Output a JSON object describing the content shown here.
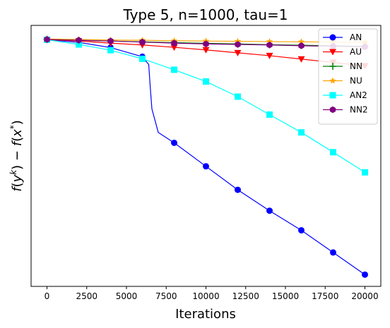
{
  "chart_data": {
    "type": "line",
    "title": "Type 5, n=1000, tau=1",
    "xlabel": "Iterations",
    "ylabel": "f(y^k) − f(x*)",
    "xlim": [
      -1000,
      21000
    ],
    "ylim": [
      0,
      1
    ],
    "xticks": [
      0,
      2500,
      5000,
      7500,
      10000,
      12500,
      15000,
      17500,
      20000
    ],
    "yticks": [],
    "grid": false,
    "legend_position": "top-right",
    "note": "y-axis has no tick labels; y values are normalized 0 (bottom) to 1 (top)",
    "series": [
      {
        "name": "AN",
        "color": "#0000ff",
        "marker": "circle",
        "x": [
          0,
          2000,
          4000,
          6000,
          6400,
          6500,
          6600,
          7000,
          8000,
          10000,
          12000,
          14000,
          16000,
          18000,
          20000
        ],
        "y": [
          0.945,
          0.935,
          0.915,
          0.88,
          0.85,
          0.76,
          0.68,
          0.59,
          0.55,
          0.46,
          0.37,
          0.29,
          0.215,
          0.13,
          0.045
        ]
      },
      {
        "name": "AU",
        "color": "#ff0000",
        "marker": "triangle-down",
        "x": [
          0,
          2000,
          4000,
          6000,
          8000,
          10000,
          12000,
          14000,
          16000,
          18000,
          20000
        ],
        "y": [
          0.945,
          0.94,
          0.932,
          0.925,
          0.916,
          0.906,
          0.895,
          0.884,
          0.871,
          0.858,
          0.845
        ]
      },
      {
        "name": "NN",
        "color": "#008000",
        "marker": "plus",
        "x": [
          0,
          2000,
          4000,
          6000,
          8000,
          10000,
          12000,
          14000,
          16000,
          18000,
          20000
        ],
        "y": [
          0.947,
          0.943,
          0.94,
          0.937,
          0.934,
          0.931,
          0.929,
          0.926,
          0.924,
          0.922,
          0.92
        ]
      },
      {
        "name": "NU",
        "color": "#ffa500",
        "marker": "star",
        "x": [
          0,
          2000,
          4000,
          6000,
          8000,
          10000,
          12000,
          14000,
          16000,
          18000,
          20000
        ],
        "y": [
          0.948,
          0.946,
          0.944,
          0.943,
          0.941,
          0.94,
          0.939,
          0.938,
          0.937,
          0.936,
          0.935
        ]
      },
      {
        "name": "AN2",
        "color": "#00ffff",
        "marker": "square",
        "x": [
          0,
          2000,
          4000,
          6000,
          8000,
          10000,
          12000,
          14000,
          16000,
          18000,
          20000
        ],
        "y": [
          0.945,
          0.927,
          0.905,
          0.872,
          0.83,
          0.785,
          0.727,
          0.658,
          0.59,
          0.514,
          0.437
        ]
      },
      {
        "name": "NN2",
        "color": "#800080",
        "marker": "hexagon",
        "x": [
          0,
          2000,
          4000,
          6000,
          8000,
          10000,
          12000,
          14000,
          16000,
          18000,
          20000
        ],
        "y": [
          0.946,
          0.943,
          0.94,
          0.936,
          0.932,
          0.929,
          0.927,
          0.925,
          0.922,
          0.92,
          0.918
        ]
      }
    ]
  }
}
